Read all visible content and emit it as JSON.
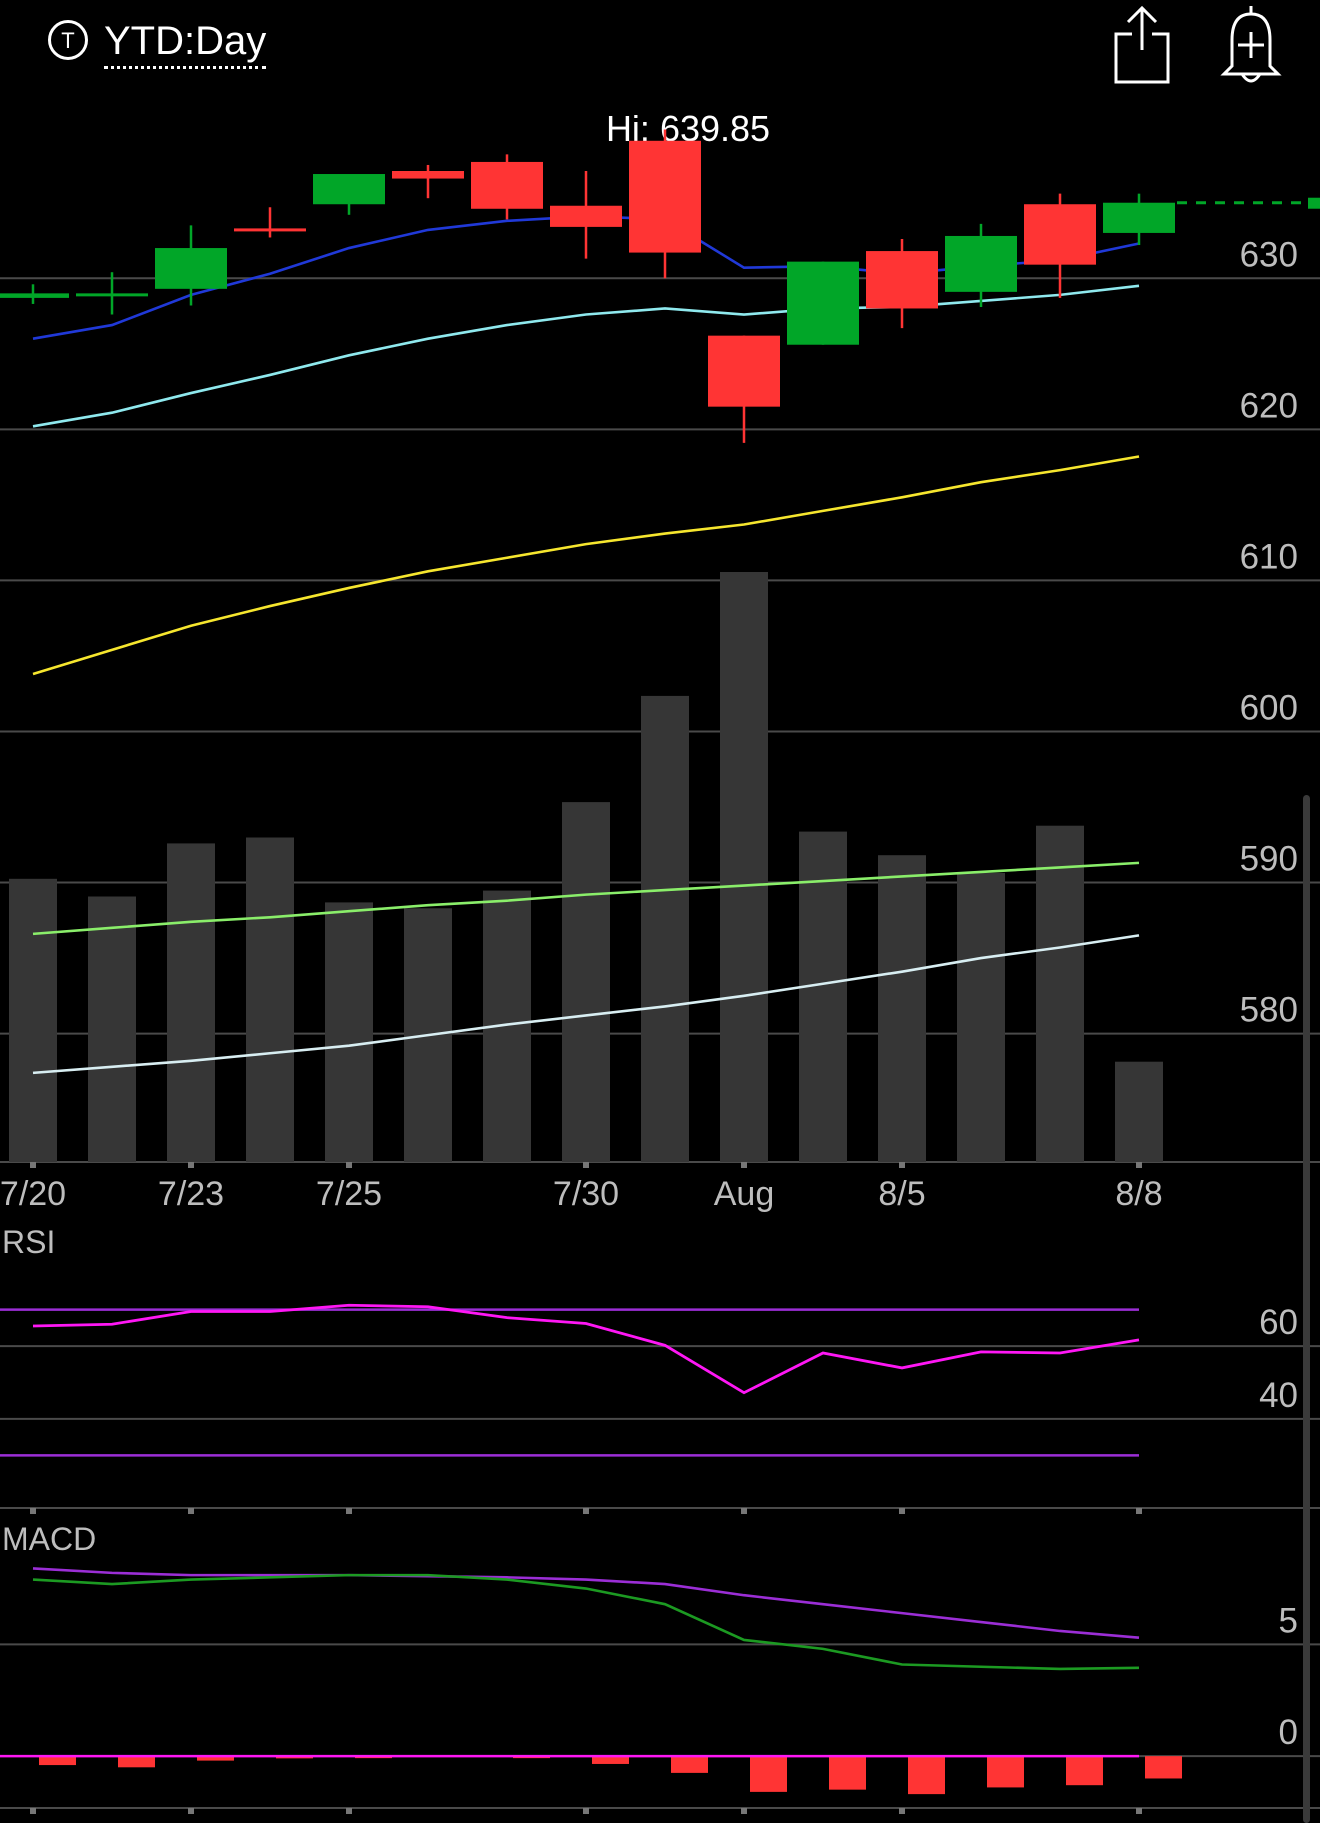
{
  "header": {
    "symbol_icon": "T",
    "title": "YTD:Day",
    "share_icon": "share-icon",
    "alert_icon": "bell-plus-icon"
  },
  "hi_label": "Hi: 639.85",
  "colors": {
    "up": "#01a628",
    "down": "#ff3434",
    "volume": "#363636",
    "grid": "#4a4a4a",
    "axis_text": "#bdbdbd",
    "ma_blue": "#2039d8",
    "ma_cyan": "#8fe9ee",
    "ma_yellow": "#f6e62e",
    "ma_green": "#8aee6a",
    "ma_white": "#d8eef2",
    "rsi_line": "#ff17f5",
    "rsi_band": "#9b2ed6",
    "macd_line": "#1c9a22",
    "macd_signal": "#9b2ed6",
    "macd_zero": "#ff17f5"
  },
  "chart_data": [
    {
      "type": "candlestick",
      "panel": "price",
      "title": "",
      "y_ticks": [
        630,
        620,
        610,
        600,
        590,
        580
      ],
      "ylim": [
        571.5,
        641.8
      ],
      "x_tick_labels": [
        {
          "i": 0,
          "label": "7/20"
        },
        {
          "i": 2,
          "label": "7/23"
        },
        {
          "i": 4,
          "label": "7/25"
        },
        {
          "i": 7,
          "label": "7/30"
        },
        {
          "i": 9,
          "label": "Aug"
        },
        {
          "i": 11,
          "label": "8/5"
        },
        {
          "i": 14,
          "label": "8/8"
        }
      ],
      "candles": [
        {
          "o": 628.7,
          "h": 629.6,
          "l": 628.3,
          "c": 629.0
        },
        {
          "o": 628.9,
          "h": 630.4,
          "l": 627.6,
          "c": 629.0
        },
        {
          "o": 629.3,
          "h": 633.5,
          "l": 628.2,
          "c": 632.0
        },
        {
          "o": 633.3,
          "h": 634.7,
          "l": 632.7,
          "c": 633.2
        },
        {
          "o": 634.9,
          "h": 636.7,
          "l": 634.2,
          "c": 636.9
        },
        {
          "o": 637.1,
          "h": 637.5,
          "l": 635.3,
          "c": 636.6
        },
        {
          "o": 637.7,
          "h": 638.2,
          "l": 633.9,
          "c": 634.6
        },
        {
          "o": 634.8,
          "h": 637.1,
          "l": 631.3,
          "c": 633.4
        },
        {
          "o": 639.1,
          "h": 639.85,
          "l": 630.0,
          "c": 631.7
        },
        {
          "o": 626.2,
          "h": 626.2,
          "l": 619.1,
          "c": 621.5
        },
        {
          "o": 625.6,
          "h": 631.1,
          "l": 625.6,
          "c": 631.1
        },
        {
          "o": 631.8,
          "h": 632.6,
          "l": 626.7,
          "c": 628.0
        },
        {
          "o": 629.1,
          "h": 633.6,
          "l": 628.1,
          "c": 632.8
        },
        {
          "o": 634.9,
          "h": 635.6,
          "l": 628.7,
          "c": 630.9
        },
        {
          "o": 633.0,
          "h": 635.6,
          "l": 632.2,
          "c": 635.0
        }
      ],
      "last_price": 635.0,
      "moving_averages": [
        {
          "color_key": "ma_blue",
          "values": [
            626.0,
            626.9,
            628.9,
            630.3,
            632.0,
            633.2,
            633.8,
            634.1,
            633.9,
            630.7,
            630.8,
            630.3,
            630.8,
            631.2,
            632.3
          ]
        },
        {
          "color_key": "ma_cyan",
          "values": [
            620.2,
            621.1,
            622.4,
            623.6,
            624.9,
            626.0,
            626.9,
            627.6,
            628.0,
            627.6,
            628.0,
            628.1,
            628.5,
            628.9,
            629.5
          ]
        },
        {
          "color_key": "ma_yellow",
          "values": [
            603.8,
            605.4,
            607.0,
            608.3,
            609.5,
            610.6,
            611.5,
            612.4,
            613.1,
            613.7,
            614.6,
            615.5,
            616.5,
            617.3,
            618.2
          ]
        }
      ],
      "overlay_lines": [
        {
          "color_key": "ma_green",
          "values": [
            586.6,
            587.0,
            587.4,
            587.7,
            588.1,
            588.5,
            588.8,
            589.2,
            589.5,
            589.8,
            590.1,
            590.4,
            590.7,
            591.0,
            591.3
          ]
        },
        {
          "color_key": "ma_white",
          "values": [
            577.4,
            577.8,
            578.2,
            578.7,
            579.2,
            579.9,
            580.6,
            581.2,
            581.8,
            582.5,
            583.3,
            584.1,
            585.0,
            585.7,
            586.5
          ]
        }
      ],
      "volume": {
        "scale_note": "",
        "values": [
          0.48,
          0.45,
          0.54,
          0.55,
          0.44,
          0.43,
          0.46,
          0.61,
          0.79,
          1.0,
          0.56,
          0.52,
          0.49,
          0.57,
          0.17
        ]
      }
    },
    {
      "type": "line",
      "panel": "RSI",
      "title": "RSI",
      "y_ticks": [
        60,
        40
      ],
      "ylim": [
        15,
        85
      ],
      "bands": [
        70,
        30
      ],
      "values": [
        65.5,
        66.0,
        69.5,
        69.5,
        71.2,
        70.8,
        67.8,
        66.2,
        60.2,
        47.2,
        58.1,
        54.0,
        58.4,
        58.1,
        61.7
      ]
    },
    {
      "type": "macd",
      "panel": "MACD",
      "title": "MACD",
      "y_ticks": [
        5,
        0
      ],
      "ylim": [
        -2.5,
        9
      ],
      "macd": [
        7.9,
        7.7,
        7.9,
        8.0,
        8.1,
        8.1,
        7.9,
        7.5,
        6.8,
        5.2,
        4.8,
        4.1,
        4.0,
        3.9,
        3.95
      ],
      "signal": [
        8.4,
        8.2,
        8.1,
        8.1,
        8.1,
        8.05,
        8.0,
        7.9,
        7.7,
        7.2,
        6.8,
        6.4,
        6.0,
        5.6,
        5.3
      ],
      "histogram": [
        -0.4,
        -0.5,
        -0.2,
        -0.1,
        0.0,
        0.05,
        -0.05,
        -0.35,
        -0.75,
        -1.6,
        -1.5,
        -1.7,
        -1.4,
        -1.3,
        -1.0
      ]
    }
  ]
}
